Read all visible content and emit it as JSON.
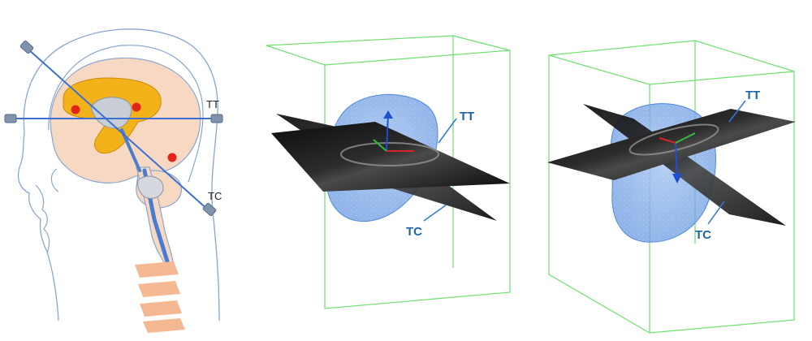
{
  "panels": {
    "anatomy": {
      "tt_label": "TT",
      "tc_label": "TC"
    },
    "volume_a": {
      "tt_label": "TT",
      "tc_label": "TC"
    },
    "volume_b": {
      "tt_label": "TT",
      "tc_label": "TC"
    }
  },
  "colors": {
    "plane_line": "#3b6fd1",
    "marker": "#e2231a",
    "ventricle": "#f3b21a",
    "skin": "#f7d8c2",
    "bounding_box": "#6fe070",
    "label_blue": "#1f63a8",
    "vertebra": "#f4b993"
  }
}
